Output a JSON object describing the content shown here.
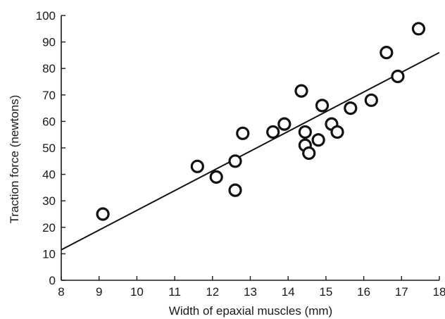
{
  "chart_data": {
    "type": "scatter",
    "title": "",
    "xlabel": "Width of epaxial muscles (mm)",
    "ylabel": "Traction force (newtons)",
    "xlim": [
      8,
      18
    ],
    "ylim": [
      0,
      100
    ],
    "xticks": [
      "8",
      "9",
      "10",
      "11",
      "12",
      "13",
      "14",
      "15",
      "16",
      "17",
      "18"
    ],
    "yticks": [
      "0",
      "10",
      "20",
      "30",
      "40",
      "50",
      "60",
      "70",
      "80",
      "90",
      "100"
    ],
    "grid": false,
    "legend": "none",
    "points": [
      {
        "x": 9.1,
        "y": 25
      },
      {
        "x": 11.6,
        "y": 43
      },
      {
        "x": 12.1,
        "y": 39
      },
      {
        "x": 12.6,
        "y": 45
      },
      {
        "x": 12.6,
        "y": 34
      },
      {
        "x": 12.8,
        "y": 55.5
      },
      {
        "x": 13.6,
        "y": 56
      },
      {
        "x": 13.9,
        "y": 59
      },
      {
        "x": 14.35,
        "y": 71.5
      },
      {
        "x": 14.45,
        "y": 56
      },
      {
        "x": 14.45,
        "y": 51
      },
      {
        "x": 14.55,
        "y": 48
      },
      {
        "x": 14.8,
        "y": 53
      },
      {
        "x": 14.9,
        "y": 66
      },
      {
        "x": 15.15,
        "y": 59
      },
      {
        "x": 15.3,
        "y": 56
      },
      {
        "x": 15.65,
        "y": 65
      },
      {
        "x": 16.2,
        "y": 68
      },
      {
        "x": 16.6,
        "y": 86
      },
      {
        "x": 16.9,
        "y": 77
      },
      {
        "x": 17.45,
        "y": 95
      }
    ],
    "regression_line": {
      "x": [
        8,
        18
      ],
      "y": [
        11.5,
        86
      ]
    },
    "colors": {
      "axis": "#1a1a1a",
      "marker_stroke": "#111111",
      "marker_fill": "#ffffff",
      "line": "#111111"
    }
  }
}
